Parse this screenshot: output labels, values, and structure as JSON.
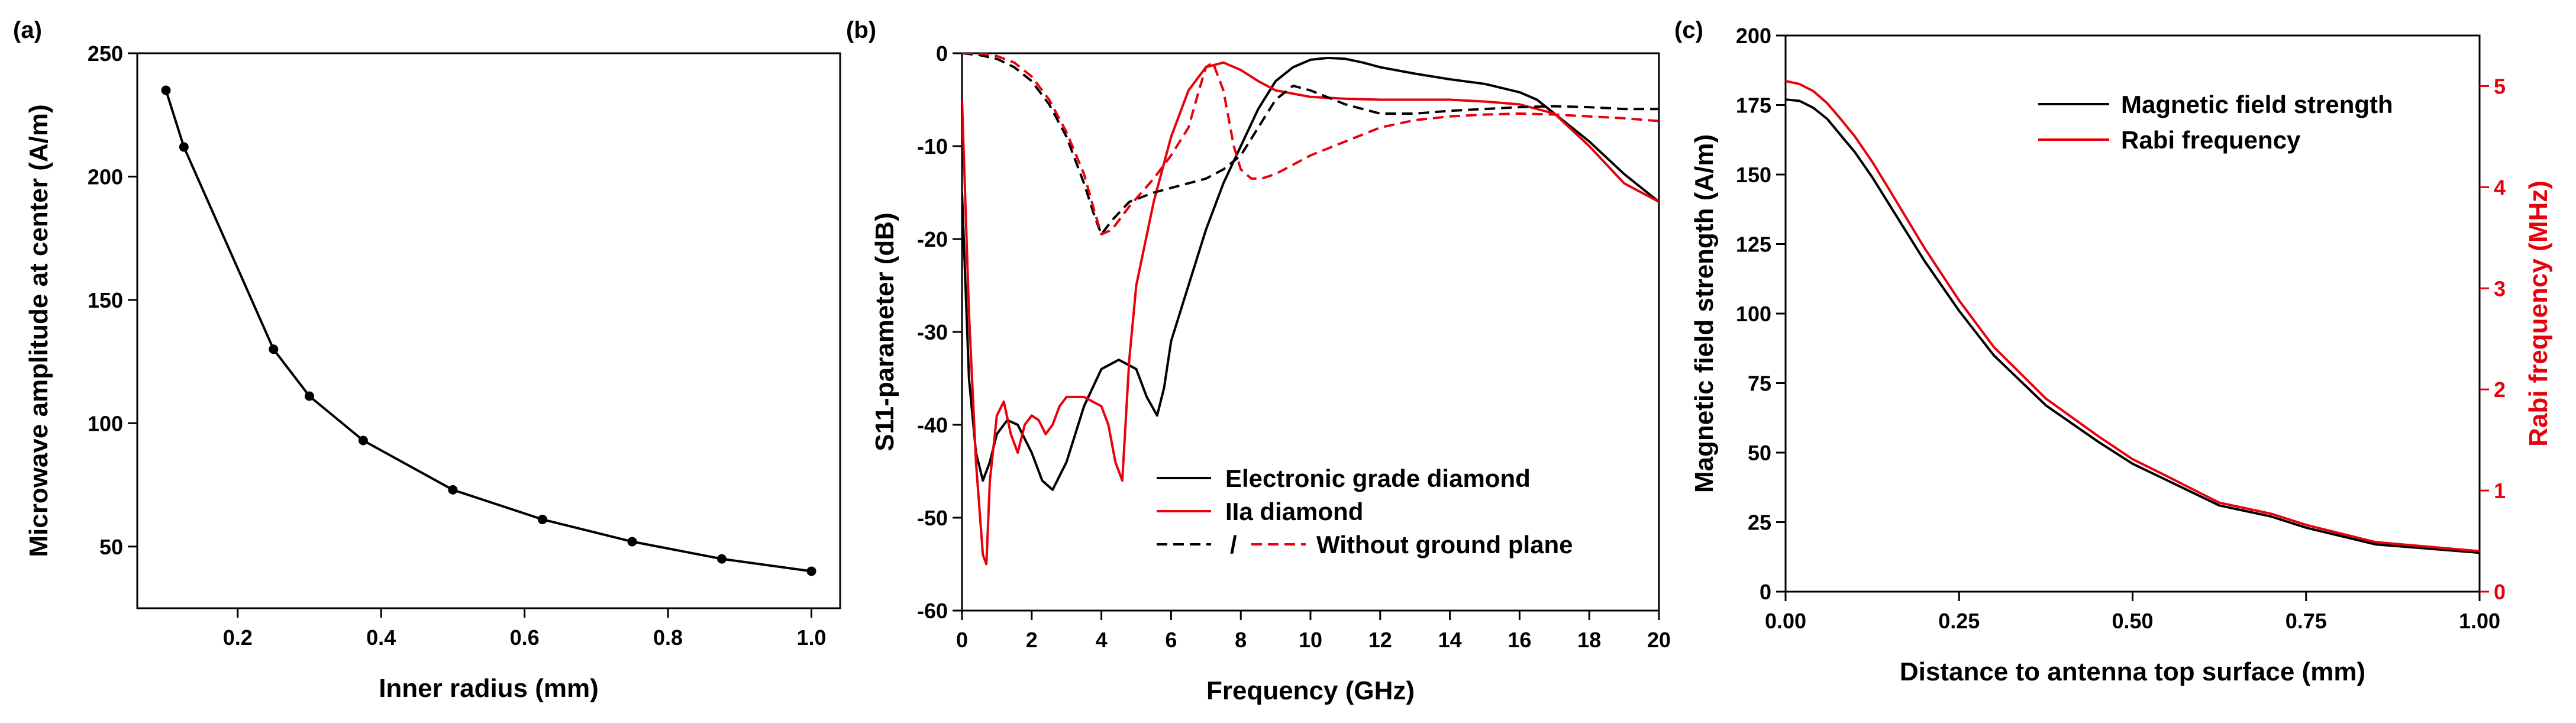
{
  "chart_data": [
    {
      "panel_label": "(a)",
      "type": "line",
      "xlabel": "Inner radius (mm)",
      "ylabel": "Microwave amplitude at center (A/m)",
      "xlim": [
        0.06,
        1.04
      ],
      "ylim": [
        25,
        250
      ],
      "xticks": [
        0.2,
        0.4,
        0.6,
        0.8,
        1.0
      ],
      "xtick_labels": [
        "0.2",
        "0.4",
        "0.6",
        "0.8",
        "1.0"
      ],
      "yticks": [
        50,
        100,
        150,
        200,
        250
      ],
      "ytick_labels": [
        "50",
        "100",
        "150",
        "200",
        "250"
      ],
      "series": [
        {
          "name": "Microwave amplitude",
          "color": "#000000",
          "style": "solid-markers",
          "x": [
            0.1,
            0.125,
            0.25,
            0.3,
            0.375,
            0.5,
            0.625,
            0.75,
            0.875,
            1.0
          ],
          "y": [
            235,
            212,
            130,
            111,
            93,
            73,
            61,
            52,
            45,
            40
          ]
        }
      ]
    },
    {
      "panel_label": "(b)",
      "type": "line",
      "xlabel": "Frequency (GHz)",
      "ylabel": "S11-parameter (dB)",
      "xlim": [
        0,
        20
      ],
      "ylim": [
        -60,
        0
      ],
      "xticks": [
        0,
        2,
        4,
        6,
        8,
        10,
        12,
        14,
        16,
        18,
        20
      ],
      "xtick_labels": [
        "0",
        "2",
        "4",
        "6",
        "8",
        "10",
        "12",
        "14",
        "16",
        "18",
        "20"
      ],
      "yticks": [
        -60,
        -50,
        -40,
        -30,
        -20,
        -10,
        0
      ],
      "ytick_labels": [
        "-60",
        "-50",
        "-40",
        "-30",
        "-20",
        "-10",
        "0"
      ],
      "legend": {
        "position": "bottom-right",
        "entries": [
          "Electronic grade diamond",
          "IIa diamond",
          "/",
          "Without ground plane"
        ]
      },
      "series": [
        {
          "name": "Electronic grade diamond",
          "color": "#000000",
          "style": "solid",
          "x": [
            0,
            0.2,
            0.4,
            0.6,
            0.8,
            1.0,
            1.3,
            1.6,
            2.0,
            2.3,
            2.6,
            3.0,
            3.5,
            4.0,
            4.5,
            5.0,
            5.3,
            5.6,
            5.8,
            6.0,
            6.5,
            7.0,
            7.5,
            8.0,
            8.5,
            9.0,
            9.5,
            10.0,
            10.5,
            11.0,
            11.5,
            12.0,
            13.0,
            14.0,
            15.0,
            16.0,
            16.5,
            17.0,
            18.0,
            19.0,
            20.0
          ],
          "y": [
            -15,
            -35,
            -43,
            -46,
            -44,
            -41,
            -39.5,
            -40,
            -43,
            -46,
            -47,
            -44,
            -38,
            -34,
            -33,
            -34,
            -37,
            -39,
            -36,
            -31,
            -25,
            -19,
            -14,
            -10,
            -6,
            -3,
            -1.5,
            -0.7,
            -0.5,
            -0.6,
            -1,
            -1.5,
            -2.2,
            -2.8,
            -3.3,
            -4.2,
            -5,
            -6.5,
            -9.5,
            -13,
            -16
          ]
        },
        {
          "name": "IIa diamond",
          "color": "#e8000b",
          "style": "solid",
          "x": [
            0,
            0.2,
            0.4,
            0.6,
            0.7,
            0.8,
            1.0,
            1.2,
            1.4,
            1.6,
            1.8,
            2.0,
            2.2,
            2.4,
            2.6,
            2.8,
            3.0,
            3.5,
            4.0,
            4.2,
            4.4,
            4.6,
            4.8,
            5.0,
            5.5,
            6.0,
            6.5,
            7.0,
            7.5,
            8.0,
            8.5,
            9.0,
            10.0,
            11.0,
            12.0,
            13.0,
            14.0,
            15.0,
            16.0,
            17.0,
            18.0,
            19.0,
            20.0
          ],
          "y": [
            -5,
            -28,
            -44,
            -54,
            -55,
            -46,
            -39,
            -37.5,
            -41,
            -43,
            -40,
            -39,
            -39.5,
            -41,
            -40,
            -38,
            -37,
            -37,
            -38,
            -40,
            -44,
            -46,
            -33,
            -25,
            -16,
            -9,
            -4,
            -1.5,
            -1,
            -1.8,
            -3,
            -4,
            -4.7,
            -4.9,
            -5,
            -5,
            -5,
            -5.2,
            -5.5,
            -6.5,
            -10,
            -14,
            -16
          ]
        },
        {
          "name": "Electronic grade diamond without ground plane",
          "color": "#000000",
          "style": "dashed",
          "x": [
            0,
            0.5,
            1,
            1.5,
            2,
            2.5,
            3,
            3.5,
            3.8,
            4,
            4.3,
            4.8,
            5.5,
            6,
            6.5,
            7,
            7.5,
            8,
            8.5,
            9,
            9.5,
            10,
            11,
            12,
            13,
            14,
            15,
            16,
            17,
            18,
            19,
            20
          ],
          "y": [
            0,
            -0.2,
            -0.6,
            -1.5,
            -3,
            -5.5,
            -9,
            -14,
            -17.5,
            -19.5,
            -18,
            -16,
            -15,
            -14.5,
            -14,
            -13.5,
            -12.5,
            -11,
            -8,
            -5,
            -3.5,
            -4,
            -5.5,
            -6.5,
            -6.5,
            -6.2,
            -6,
            -5.8,
            -5.7,
            -5.8,
            -6,
            -6
          ]
        },
        {
          "name": "IIa diamond without ground plane",
          "color": "#e8000b",
          "style": "dashed",
          "x": [
            0,
            0.5,
            1,
            1.5,
            2,
            2.5,
            3,
            3.5,
            3.8,
            4,
            4.3,
            4.8,
            5.5,
            6,
            6.5,
            6.8,
            7,
            7.2,
            7.5,
            7.8,
            8,
            8.3,
            8.6,
            9,
            9.5,
            10,
            11,
            12,
            13,
            14,
            15,
            16,
            17,
            18,
            19,
            20
          ],
          "y": [
            0,
            0,
            -0.3,
            -1,
            -2.5,
            -5,
            -8.5,
            -13,
            -17,
            -19.5,
            -19,
            -16.5,
            -13.5,
            -11,
            -8,
            -4,
            -1.5,
            -1,
            -4,
            -10,
            -12.5,
            -13.5,
            -13.5,
            -13,
            -12,
            -11,
            -9.5,
            -8,
            -7.2,
            -6.8,
            -6.6,
            -6.5,
            -6.6,
            -6.8,
            -7,
            -7.3
          ]
        }
      ]
    },
    {
      "panel_label": "(c)",
      "type": "line",
      "xlabel": "Distance to antenna top surface (mm)",
      "ylabel": "Magnetic field strength (A/m)",
      "ylabel_right": "Rabi frequency (MHz)",
      "xlim": [
        0,
        1
      ],
      "ylim": [
        0,
        200
      ],
      "ylim_right": [
        0,
        5.5
      ],
      "xticks": [
        0,
        0.25,
        0.5,
        0.75,
        1.0
      ],
      "xtick_labels": [
        "0.00",
        "0.25",
        "0.50",
        "0.75",
        "1.00"
      ],
      "yticks": [
        0,
        25,
        50,
        75,
        100,
        125,
        150,
        175,
        200
      ],
      "ytick_labels": [
        "0",
        "25",
        "50",
        "75",
        "100",
        "125",
        "150",
        "175",
        "200"
      ],
      "yticks_right": [
        0,
        1,
        2,
        3,
        4,
        5
      ],
      "ytick_labels_right": [
        "0",
        "1",
        "2",
        "3",
        "4",
        "5"
      ],
      "right_axis_color": "#e8000b",
      "legend": {
        "position": "top-right",
        "entries": [
          "Magnetic field strength",
          "Rabi frequency"
        ]
      },
      "series": [
        {
          "name": "Magnetic field strength",
          "axis": "left",
          "color": "#000000",
          "style": "solid",
          "x": [
            0,
            0.02,
            0.04,
            0.06,
            0.08,
            0.1,
            0.125,
            0.15,
            0.2,
            0.25,
            0.3,
            0.375,
            0.45,
            0.5,
            0.55,
            0.625,
            0.7,
            0.75,
            0.85,
            1.0
          ],
          "y": [
            177,
            176.5,
            174,
            170,
            164,
            158,
            149,
            139,
            119,
            101,
            85,
            67,
            54,
            46,
            40,
            31,
            27,
            23,
            17,
            14
          ]
        },
        {
          "name": "Rabi frequency",
          "axis": "right",
          "color": "#e8000b",
          "style": "solid",
          "x": [
            0,
            0.02,
            0.04,
            0.06,
            0.08,
            0.1,
            0.125,
            0.15,
            0.2,
            0.25,
            0.3,
            0.375,
            0.45,
            0.5,
            0.55,
            0.625,
            0.7,
            0.75,
            0.85,
            1.0
          ],
          "y": [
            5.05,
            5.02,
            4.95,
            4.83,
            4.67,
            4.5,
            4.25,
            3.97,
            3.4,
            2.88,
            2.42,
            1.91,
            1.54,
            1.31,
            1.14,
            0.88,
            0.77,
            0.66,
            0.49,
            0.4
          ]
        }
      ]
    }
  ]
}
